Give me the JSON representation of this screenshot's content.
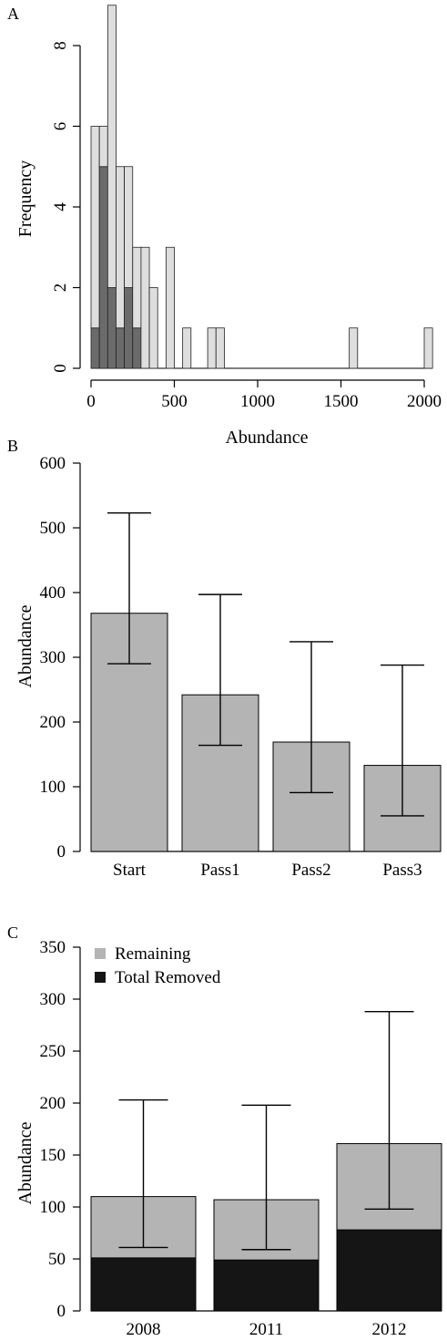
{
  "chart_data": [
    {
      "panel": "A",
      "type": "bar",
      "subtype": "stacked-histogram",
      "xlabel": "Abundance",
      "ylabel": "Frequency",
      "xlim": [
        0,
        2050
      ],
      "ylim": [
        0,
        9
      ],
      "xticks": [
        "0",
        "500",
        "1000",
        "1500",
        "2000"
      ],
      "yticks": [
        "0",
        "2",
        "4",
        "6",
        "8"
      ],
      "bin_width": 50,
      "bins": [
        0,
        50,
        100,
        150,
        200,
        250,
        300,
        350,
        400,
        450,
        500,
        550,
        700,
        750,
        1550,
        2000
      ],
      "series": [
        {
          "values": [
            1,
            5,
            2,
            1,
            2,
            1,
            0,
            0,
            0,
            0,
            0,
            0,
            0,
            0,
            0,
            0
          ],
          "color": "#6b6b6b"
        },
        {
          "values": [
            5,
            1,
            7,
            4,
            3,
            2,
            3,
            2,
            0,
            3,
            0,
            1,
            1,
            1,
            1,
            1
          ],
          "color": "#dedede"
        }
      ],
      "totals": [
        6,
        6,
        9,
        5,
        5,
        3,
        3,
        2,
        0,
        3,
        0,
        1,
        1,
        1,
        1,
        1
      ]
    },
    {
      "panel": "B",
      "type": "bar",
      "categories": [
        "Start",
        "Pass1",
        "Pass2",
        "Pass3"
      ],
      "values": [
        368,
        242,
        169,
        133
      ],
      "error_low": [
        290,
        164,
        91,
        55
      ],
      "error_high": [
        523,
        397,
        324,
        288
      ],
      "ylabel": "Abundance",
      "ylim": [
        0,
        600
      ],
      "yticks": [
        "0",
        "100",
        "200",
        "300",
        "400",
        "500",
        "600"
      ],
      "color": "#b4b4b4"
    },
    {
      "panel": "C",
      "type": "bar",
      "subtype": "stacked",
      "categories": [
        "2008",
        "2011",
        "2012"
      ],
      "series": [
        {
          "name": "Total Removed",
          "values": [
            51,
            49,
            78
          ],
          "color": "#151515"
        },
        {
          "name": "Remaining",
          "values": [
            59,
            58,
            83
          ],
          "color": "#b4b4b4"
        }
      ],
      "totals": [
        110,
        107,
        161
      ],
      "error_low": [
        61,
        59,
        98
      ],
      "error_high": [
        203,
        198,
        288
      ],
      "ylabel": "Abundance",
      "ylim": [
        0,
        350
      ],
      "yticks": [
        "0",
        "50",
        "100",
        "150",
        "200",
        "250",
        "300",
        "350"
      ],
      "legend": {
        "position": "top-left",
        "entries": [
          {
            "label": "Remaining",
            "color": "#b4b4b4"
          },
          {
            "label": "Total Removed",
            "color": "#151515"
          }
        ]
      }
    }
  ]
}
